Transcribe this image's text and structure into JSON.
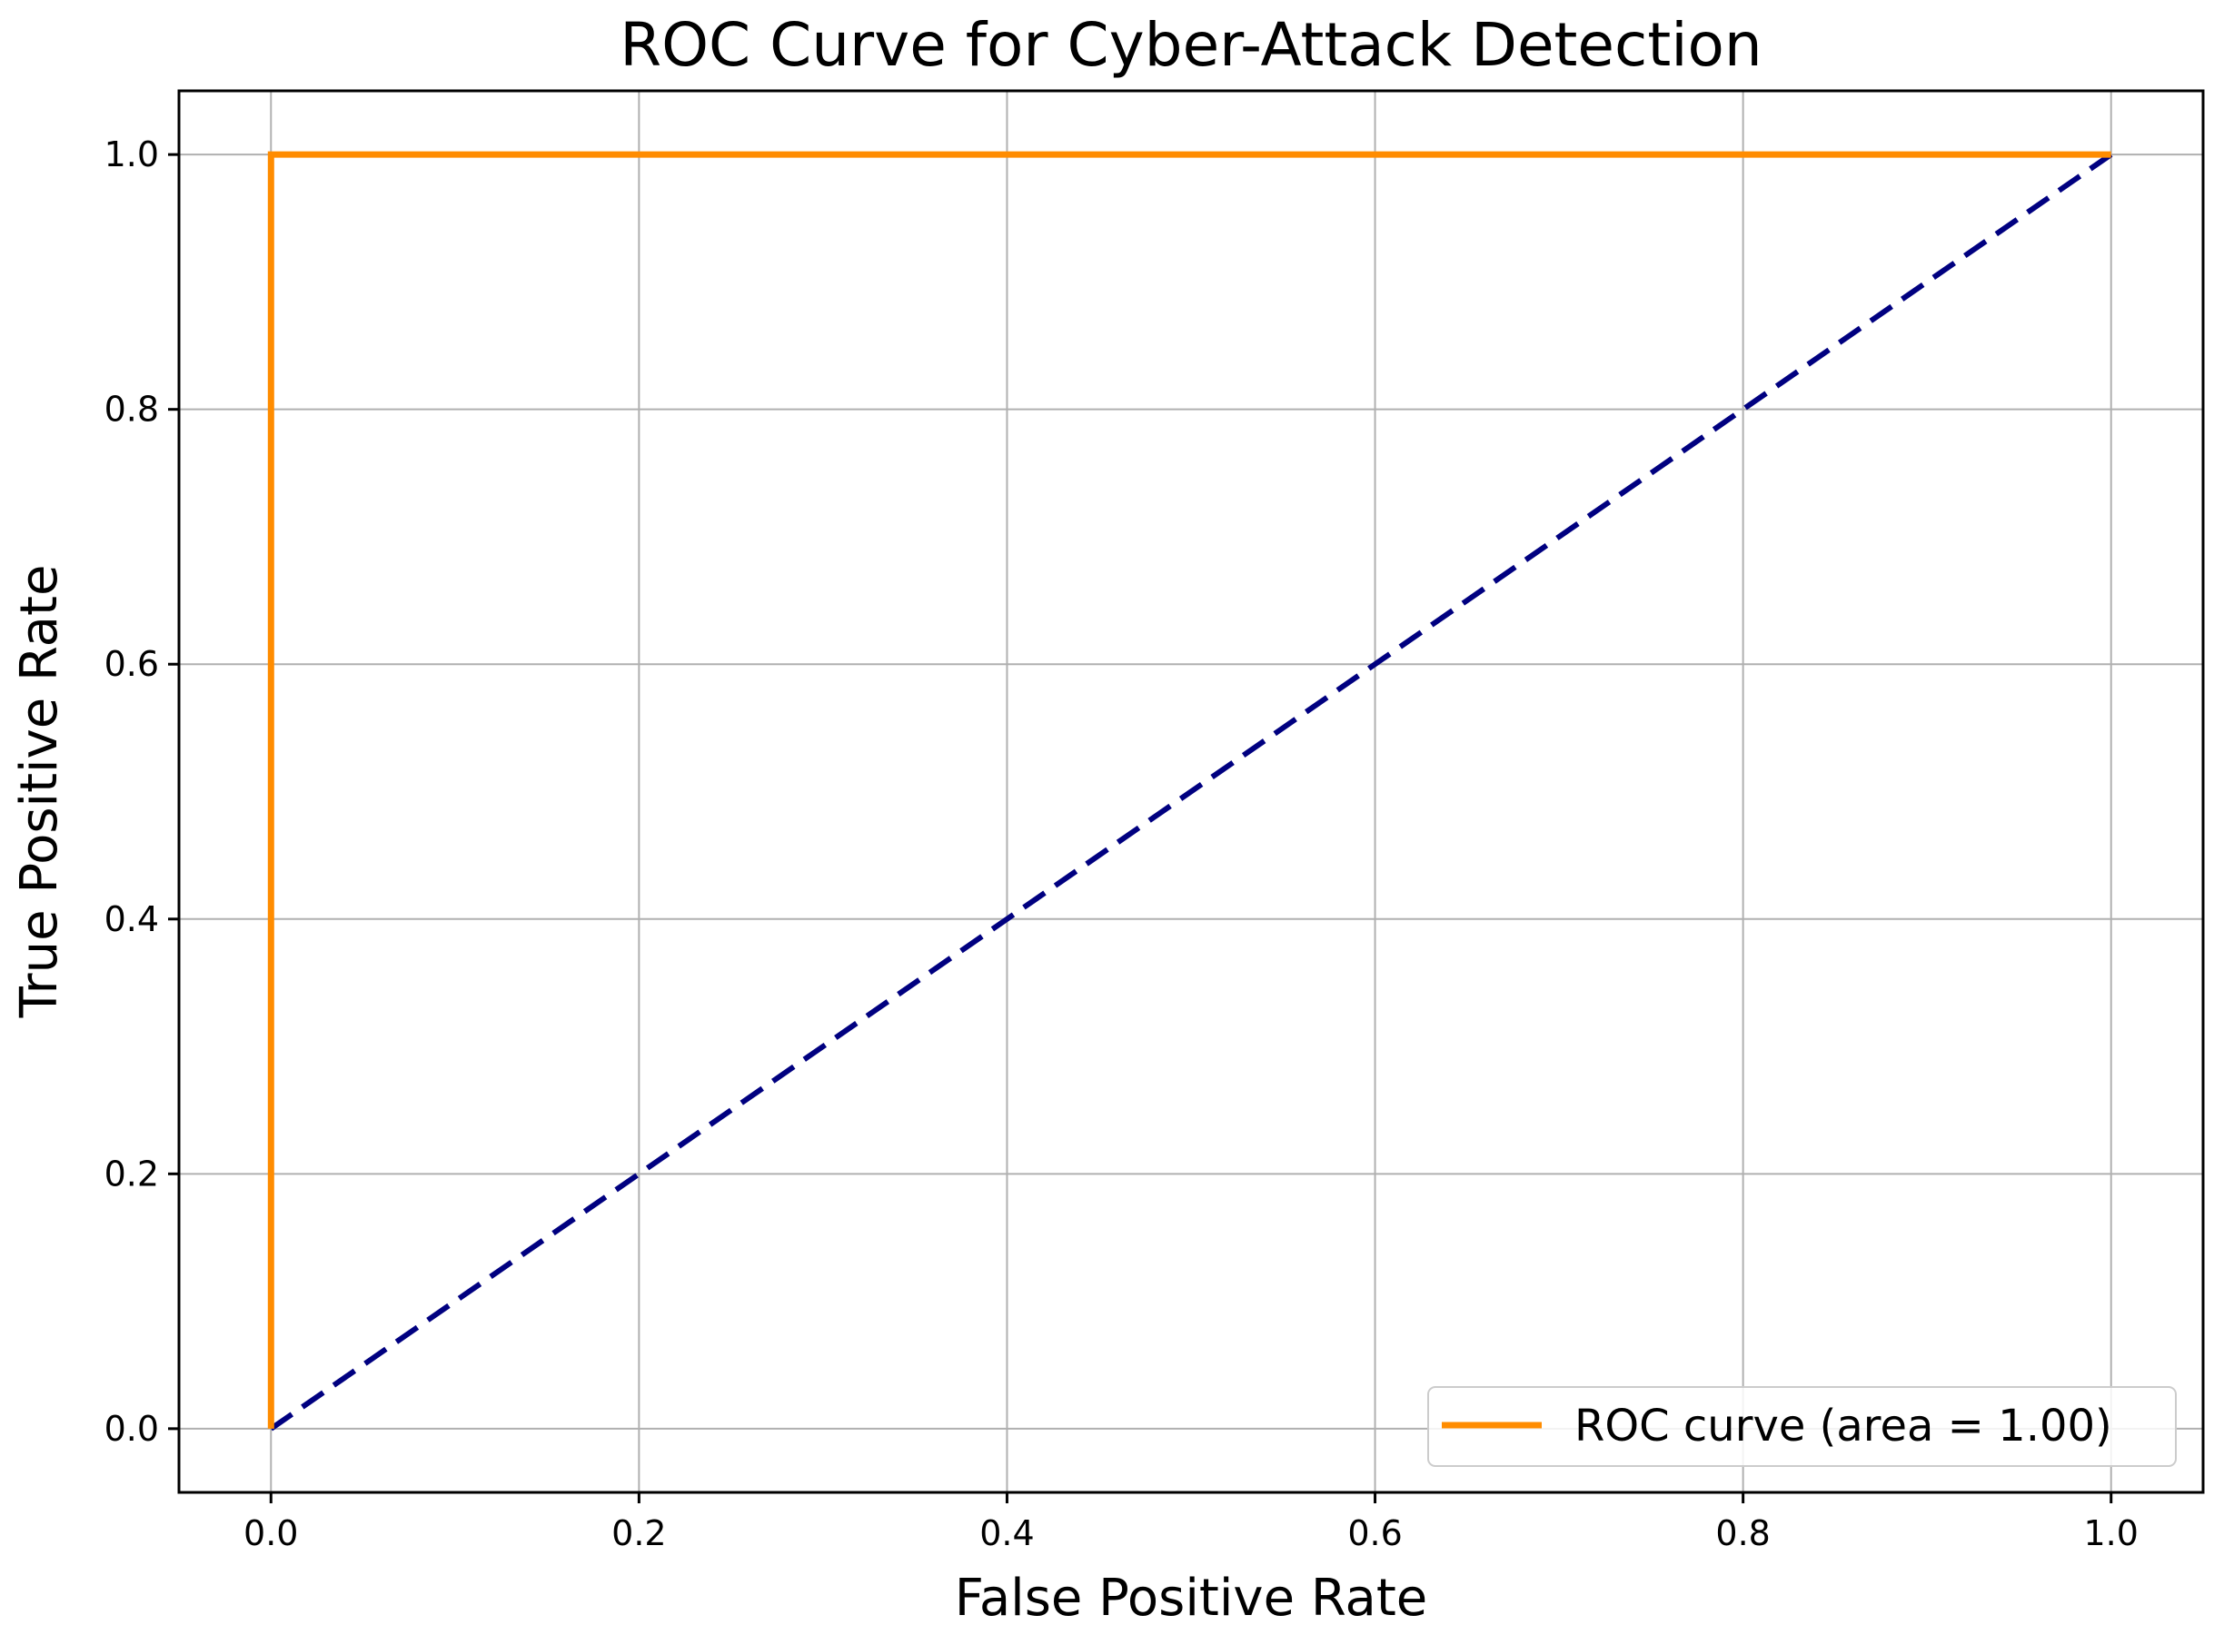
{
  "chart_data": {
    "type": "line",
    "title": "ROC Curve for Cyber-Attack Detection",
    "xlabel": "False Positive Rate",
    "ylabel": "True Positive Rate",
    "xlim": [
      -0.05,
      1.05
    ],
    "ylim": [
      -0.05,
      1.05
    ],
    "x_ticks": [
      0.0,
      0.2,
      0.4,
      0.6,
      0.8,
      1.0
    ],
    "x_tick_labels": [
      "0.0",
      "0.2",
      "0.4",
      "0.6",
      "0.8",
      "1.0"
    ],
    "y_ticks": [
      0.0,
      0.2,
      0.4,
      0.6,
      0.8,
      1.0
    ],
    "y_tick_labels": [
      "0.0",
      "0.2",
      "0.4",
      "0.6",
      "0.8",
      "1.0"
    ],
    "grid": true,
    "legend_position": "lower-right",
    "series": [
      {
        "name": "ROC curve (area = 1.00)",
        "color": "#ff8c00",
        "style": "solid",
        "x": [
          0.0,
          0.0,
          1.0
        ],
        "y": [
          0.0,
          1.0,
          1.0
        ]
      },
      {
        "color": "#000080",
        "style": "dashed",
        "x": [
          0.0,
          1.0
        ],
        "y": [
          0.0,
          1.0
        ]
      }
    ]
  }
}
